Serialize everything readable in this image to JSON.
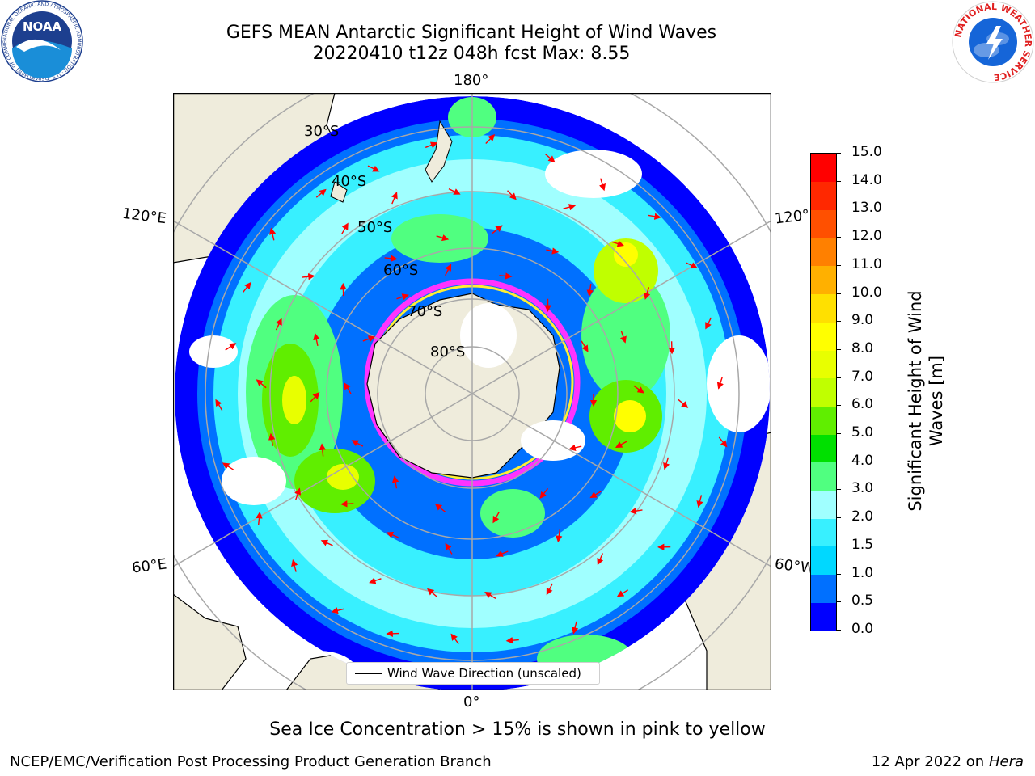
{
  "title": {
    "line1": "GEFS MEAN Antarctic Significant Height of Wind Waves",
    "line2": "20220410 t12z 048h fcst   Max: 8.55"
  },
  "map": {
    "projection": "south-polar-stereographic",
    "ocean_color": "#ffffff",
    "land_color": "#efecdc",
    "longitude_labels": [
      "180°",
      "120°E",
      "120°",
      "60°E",
      "60°W",
      "0°"
    ],
    "latitude_labels": [
      "30°S",
      "40°S",
      "50°S",
      "60°S",
      "70°S",
      "80°S"
    ],
    "arrow_color": "#ff0000",
    "sea_ice_colors": [
      "#ff33ff",
      "#ff9933",
      "#ffee33"
    ]
  },
  "legend": {
    "label": "Wind Wave Direction (unscaled)"
  },
  "colorbar": {
    "label_line1": "Significant Height of Wind",
    "label_line2": "Waves [m]",
    "ticks": [
      "0.0",
      "0.5",
      "1.0",
      "1.5",
      "2.0",
      "3.0",
      "4.0",
      "5.0",
      "6.0",
      "7.0",
      "8.0",
      "9.0",
      "10.0",
      "11.0",
      "12.0",
      "13.0",
      "14.0",
      "15.0"
    ],
    "colors": [
      "#0000ff",
      "#0070ff",
      "#00d8ff",
      "#38f0ff",
      "#a0ffff",
      "#50ff80",
      "#00e000",
      "#60ee00",
      "#c0ff00",
      "#e8ff00",
      "#ffff00",
      "#ffe000",
      "#ffb000",
      "#ff8000",
      "#ff5000",
      "#ff2800",
      "#ff0000"
    ]
  },
  "footnote": "Sea Ice Concentration > 15% is shown in pink to yellow",
  "footer": {
    "left": "NCEP/EMC/Verification Post Processing Product Generation Branch",
    "right_date": "12 Apr 2022 on ",
    "right_machine": "Hera"
  },
  "logos": {
    "noaa": {
      "text": "NOAA",
      "ring_text": "NATIONAL OCEANIC AND ATMOSPHERIC ADMINISTRATION · U.S. DEPARTMENT OF COMMERCE"
    },
    "nws": {
      "ring_text": "NATIONAL WEATHER SERVICE"
    }
  }
}
